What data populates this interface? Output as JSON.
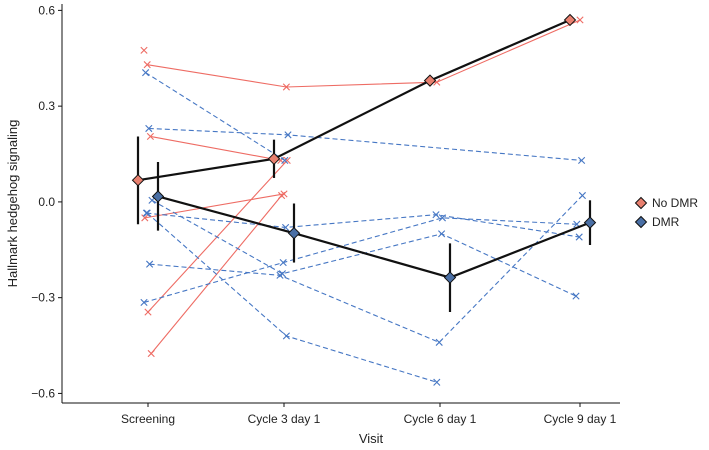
{
  "chart_data": {
    "type": "line",
    "title": "",
    "xlabel": "Visit",
    "ylabel": "Hallmark hedgehog signaling",
    "categories": [
      "Screening",
      "Cycle 3 day 1",
      "Cycle 6 day 1",
      "Cycle 9 day 1"
    ],
    "ylim": [
      -0.63,
      0.62
    ],
    "yticks": [
      0.6,
      0.3,
      0.0,
      -0.3,
      -0.6
    ],
    "ytick_labels": [
      "0.6",
      "0.3",
      "0.0",
      "−0.3",
      "−0.6"
    ],
    "grid": false,
    "legend_position": "right",
    "legend": [
      {
        "label": "No DMR",
        "color": "#e8806f"
      },
      {
        "label": "DMR",
        "color": "#4a6fa5"
      }
    ],
    "colors": {
      "no_dmr_individual": "#ee6c64",
      "dmr_individual": "#4677c4",
      "no_dmr_marker": "#e8806f",
      "dmr_marker": "#4a6fa5",
      "mean_line": "#111111"
    },
    "individual_series": [
      {
        "group": "No DMR",
        "points": [
          [
            0,
            0.475
          ]
        ]
      },
      {
        "group": "No DMR",
        "points": [
          [
            0,
            0.43
          ],
          [
            1,
            0.36
          ],
          [
            2,
            0.375
          ],
          [
            3,
            0.57
          ]
        ]
      },
      {
        "group": "No DMR",
        "points": [
          [
            0,
            0.205
          ],
          [
            1,
            0.13
          ]
        ]
      },
      {
        "group": "No DMR",
        "points": [
          [
            0,
            -0.05
          ],
          [
            1,
            0.025
          ]
        ]
      },
      {
        "group": "No DMR",
        "points": [
          [
            0,
            -0.345
          ],
          [
            1,
            0.13
          ]
        ]
      },
      {
        "group": "No DMR",
        "points": [
          [
            0,
            -0.475
          ],
          [
            1,
            0.02
          ]
        ]
      },
      {
        "group": "DMR",
        "points": [
          [
            0,
            0.405
          ],
          [
            1,
            0.13
          ]
        ]
      },
      {
        "group": "DMR",
        "points": [
          [
            0,
            0.23
          ],
          [
            1,
            0.21
          ],
          [
            3,
            0.13
          ]
        ]
      },
      {
        "group": "DMR",
        "points": [
          [
            0,
            0.005
          ],
          [
            1,
            -0.225
          ],
          [
            2,
            -0.1
          ],
          [
            3,
            -0.295
          ]
        ]
      },
      {
        "group": "DMR",
        "points": [
          [
            0,
            -0.035
          ],
          [
            1,
            -0.08
          ],
          [
            2,
            -0.04
          ],
          [
            3,
            -0.11
          ]
        ]
      },
      {
        "group": "DMR",
        "points": [
          [
            0,
            -0.195
          ],
          [
            1,
            -0.23
          ],
          [
            2,
            -0.44
          ],
          [
            3,
            0.02
          ]
        ]
      },
      {
        "group": "DMR",
        "points": [
          [
            0,
            -0.315
          ],
          [
            1,
            -0.19
          ],
          [
            2,
            -0.05
          ],
          [
            3,
            -0.07
          ]
        ]
      },
      {
        "group": "DMR",
        "points": [
          [
            0,
            -0.035
          ],
          [
            1,
            -0.42
          ],
          [
            2,
            -0.565
          ]
        ]
      }
    ],
    "series": [
      {
        "name": "No DMR",
        "x": [
          0,
          1,
          2,
          3
        ],
        "values": [
          0.068,
          0.135,
          0.38,
          0.57
        ],
        "lower": [
          -0.07,
          0.075,
          null,
          null
        ],
        "upper": [
          0.205,
          0.195,
          null,
          null
        ]
      },
      {
        "name": "DMR",
        "x": [
          0,
          1,
          2,
          3
        ],
        "values": [
          0.017,
          -0.098,
          -0.237,
          -0.065
        ],
        "lower": [
          -0.09,
          -0.19,
          -0.345,
          -0.135
        ],
        "upper": [
          0.125,
          -0.005,
          -0.13,
          0.005
        ]
      }
    ]
  }
}
